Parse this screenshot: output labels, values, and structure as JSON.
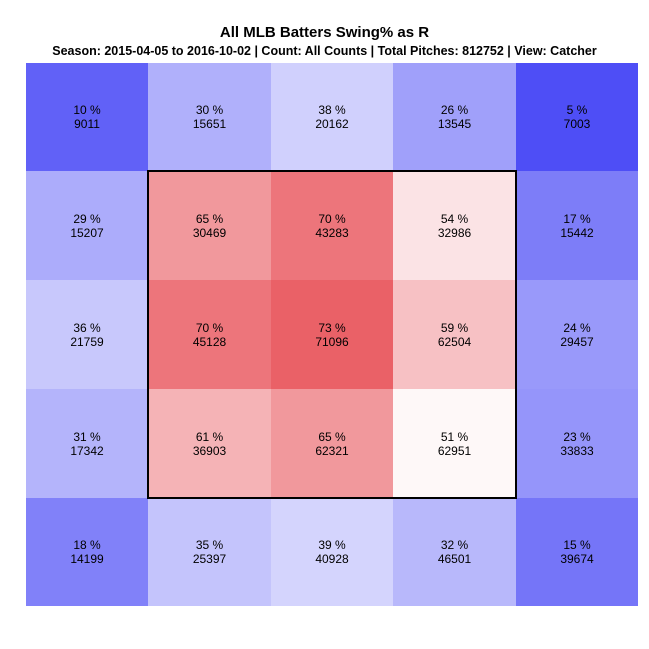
{
  "chart_data": {
    "type": "heatmap",
    "title": "All MLB Batters Swing% as R",
    "subtitle": "Season: 2015-04-05 to 2016-10-02 | Count: All Counts | Total Pitches: 812752 | View: Catcher",
    "rows": 5,
    "cols": 5,
    "cells": [
      [
        {
          "pct": "10 %",
          "count": "9011"
        },
        {
          "pct": "30 %",
          "count": "15651"
        },
        {
          "pct": "38 %",
          "count": "20162"
        },
        {
          "pct": "26 %",
          "count": "13545"
        },
        {
          "pct": "5 %",
          "count": "7003"
        }
      ],
      [
        {
          "pct": "29 %",
          "count": "15207"
        },
        {
          "pct": "65 %",
          "count": "30469"
        },
        {
          "pct": "70 %",
          "count": "43283"
        },
        {
          "pct": "54 %",
          "count": "32986"
        },
        {
          "pct": "17 %",
          "count": "15442"
        }
      ],
      [
        {
          "pct": "36 %",
          "count": "21759"
        },
        {
          "pct": "70 %",
          "count": "45128"
        },
        {
          "pct": "73 %",
          "count": "71096"
        },
        {
          "pct": "59 %",
          "count": "62504"
        },
        {
          "pct": "24 %",
          "count": "29457"
        }
      ],
      [
        {
          "pct": "31 %",
          "count": "17342"
        },
        {
          "pct": "61 %",
          "count": "36903"
        },
        {
          "pct": "65 %",
          "count": "62321"
        },
        {
          "pct": "51 %",
          "count": "62951"
        },
        {
          "pct": "23 %",
          "count": "33833"
        }
      ],
      [
        {
          "pct": "18 %",
          "count": "14199"
        },
        {
          "pct": "35 %",
          "count": "25397"
        },
        {
          "pct": "39 %",
          "count": "40928"
        },
        {
          "pct": "32 %",
          "count": "46501"
        },
        {
          "pct": "15 %",
          "count": "39674"
        }
      ]
    ],
    "colors": {
      "low": "#3a3af5",
      "mid": "#ffffff",
      "high": "#e8535a",
      "mid_value": 50
    },
    "strike_zone": {
      "row_start": 1,
      "row_end": 3,
      "col_start": 1,
      "col_end": 3
    }
  }
}
